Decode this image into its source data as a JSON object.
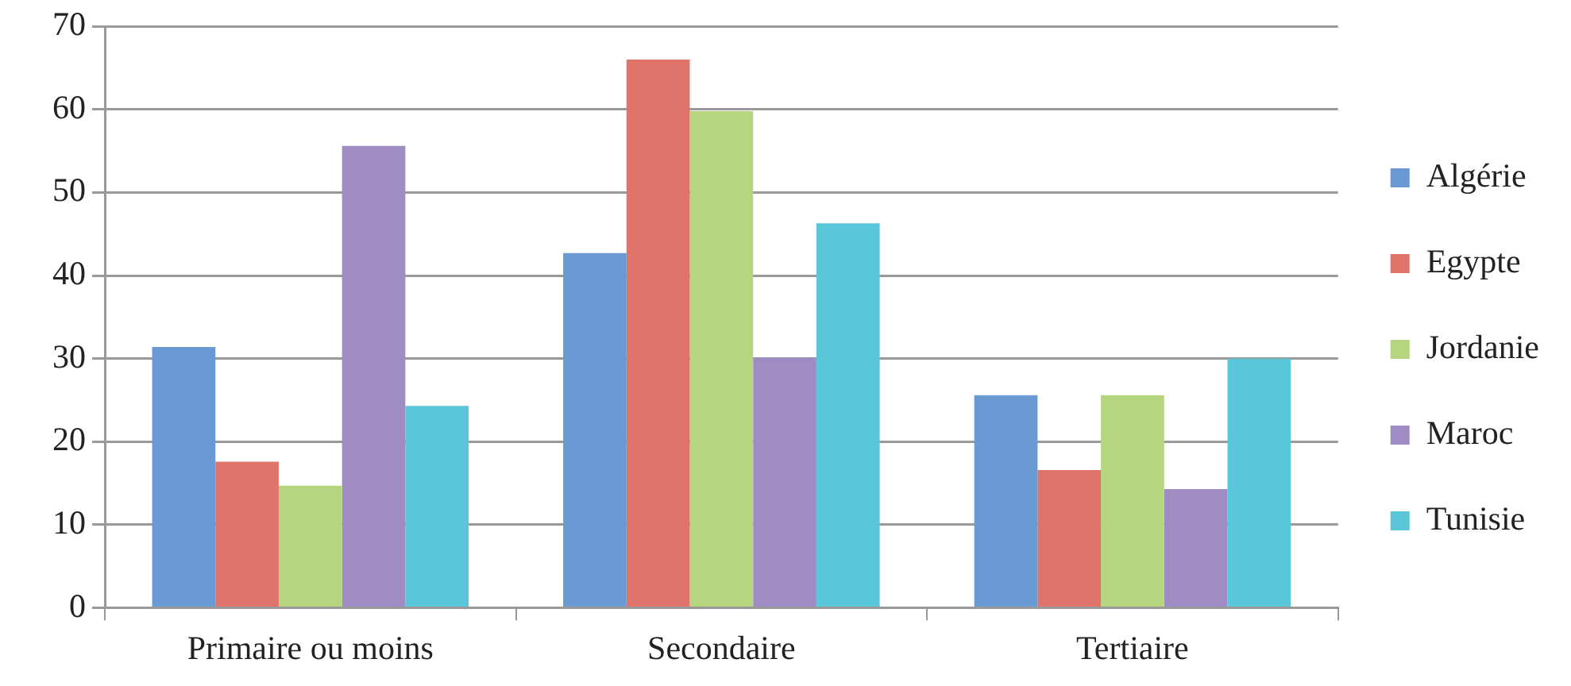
{
  "chart_data": {
    "type": "bar",
    "categories": [
      "Primaire ou moins",
      "Secondaire",
      "Tertiaire"
    ],
    "series": [
      {
        "name": "Algérie",
        "color": "#6a9ad4",
        "values": [
          31.4,
          42.7,
          25.6
        ]
      },
      {
        "name": "Egypte",
        "color": "#e0746b",
        "values": [
          17.6,
          66.0,
          16.6
        ]
      },
      {
        "name": "Jordanie",
        "color": "#b5d67f",
        "values": [
          14.7,
          59.8,
          25.6
        ]
      },
      {
        "name": "Maroc",
        "color": "#a08cc4",
        "values": [
          55.6,
          30.1,
          14.3
        ]
      },
      {
        "name": "Tunisie",
        "color": "#5ac6da",
        "values": [
          24.3,
          46.3,
          30.0
        ]
      }
    ],
    "ylim": [
      0,
      70
    ],
    "yticks": [
      0,
      10,
      20,
      30,
      40,
      50,
      60,
      70
    ],
    "grid": "y",
    "legend": "right"
  }
}
